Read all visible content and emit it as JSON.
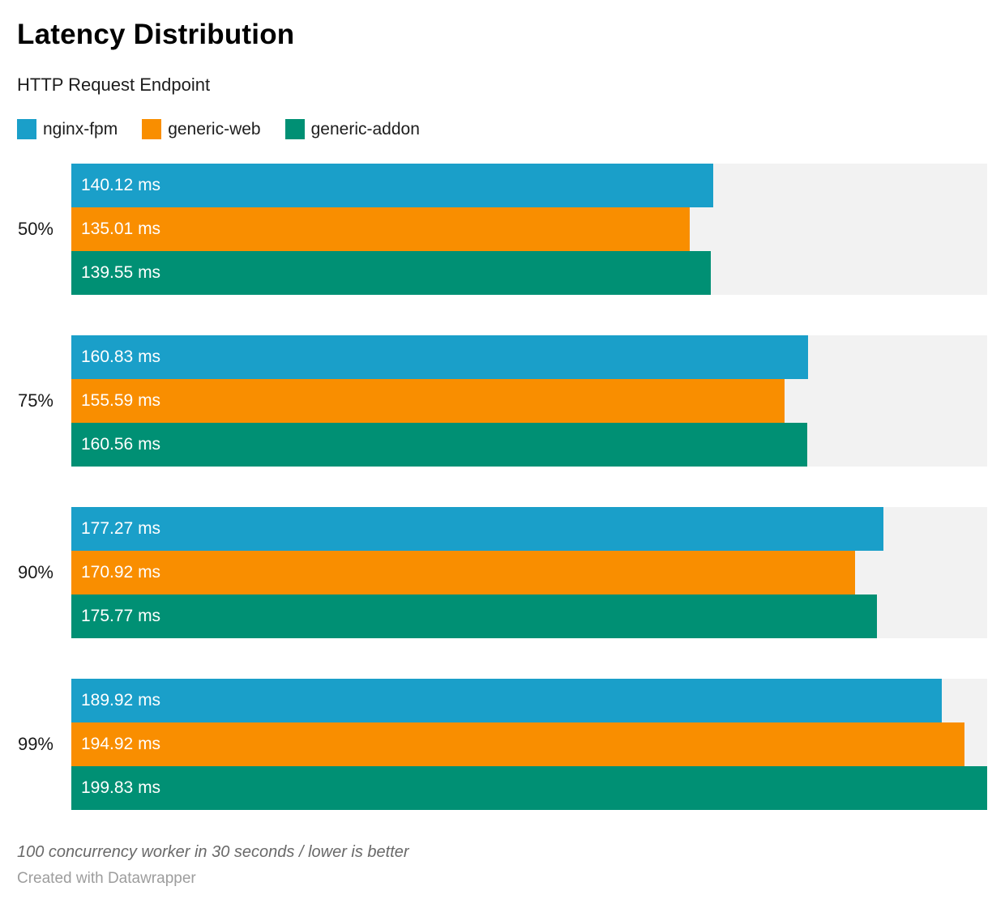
{
  "header": {
    "title": "Latency Distribution",
    "subtitle": "HTTP Request Endpoint"
  },
  "chart_data": {
    "type": "bar",
    "orientation": "horizontal",
    "title": "Latency Distribution",
    "subtitle": "HTTP Request Endpoint",
    "unit": "ms",
    "categories": [
      "50%",
      "75%",
      "90%",
      "99%"
    ],
    "series": [
      {
        "name": "nginx-fpm",
        "color": "#1A9FC9",
        "values": [
          140.12,
          160.83,
          177.27,
          189.92
        ]
      },
      {
        "name": "generic-web",
        "color": "#F98E00",
        "values": [
          135.01,
          155.59,
          170.92,
          194.92
        ]
      },
      {
        "name": "generic-addon",
        "color": "#009074",
        "values": [
          139.55,
          160.56,
          175.77,
          199.83
        ]
      }
    ],
    "bar_labels": [
      [
        "140.12 ms",
        "160.83 ms",
        "177.27 ms",
        "189.92 ms"
      ],
      [
        "135.01 ms",
        "155.59 ms",
        "170.92 ms",
        "194.92 ms"
      ],
      [
        "139.55 ms",
        "160.56 ms",
        "175.77 ms",
        "199.83 ms"
      ]
    ],
    "xlim": [
      0,
      199.83
    ],
    "grid": false,
    "legend_position": "top",
    "track_color": "#F2F2F2",
    "value_label_color": "#FFFFFF"
  },
  "footer": {
    "note": "100 concurrency worker in 30 seconds / lower is better",
    "credit": "Created with Datawrapper"
  }
}
